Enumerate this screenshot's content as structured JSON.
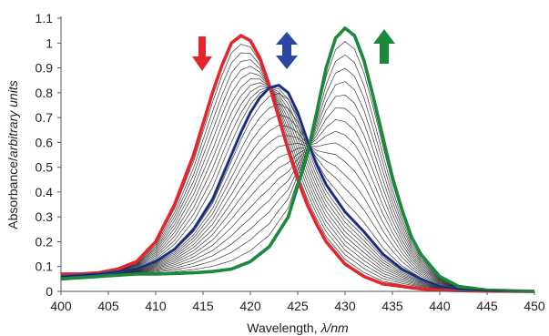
{
  "chart_data": {
    "type": "line",
    "xlabel_parts": [
      "Wavelength, ",
      "λ/nm"
    ],
    "ylabel_parts": [
      "Absorbance/",
      "arbitrary units"
    ],
    "xlim": [
      400,
      450
    ],
    "ylim": [
      0,
      1.1
    ],
    "x_ticks": [
      400,
      405,
      410,
      415,
      420,
      425,
      430,
      435,
      440,
      445,
      450
    ],
    "x_tick_labels": [
      "400",
      "405",
      "410",
      "415",
      "420",
      "425",
      "430",
      "435",
      "440",
      "445",
      "450"
    ],
    "y_ticks": [
      0,
      0.1,
      0.2,
      0.3,
      0.4,
      0.5,
      0.6,
      0.7,
      0.8,
      0.9,
      1.0,
      1.1
    ],
    "y_tick_labels": [
      "0",
      "0.1",
      "0.2",
      "0.3",
      "0.4",
      "0.5",
      "0.6",
      "0.7",
      "0.8",
      "0.9",
      "1",
      "1.1"
    ],
    "grid": false,
    "highlighted_series": [
      {
        "color": "#e3262b",
        "x": [
          400,
          402,
          404,
          406,
          408,
          410,
          412,
          414,
          416,
          417,
          418,
          419,
          420,
          421,
          422,
          423,
          424,
          425,
          426,
          427,
          428,
          430,
          432,
          434,
          436,
          438,
          440,
          442,
          445,
          450
        ],
        "values": [
          0.07,
          0.07,
          0.075,
          0.09,
          0.12,
          0.2,
          0.35,
          0.55,
          0.8,
          0.91,
          1.0,
          1.03,
          1.01,
          0.94,
          0.83,
          0.7,
          0.57,
          0.45,
          0.35,
          0.27,
          0.2,
          0.11,
          0.06,
          0.03,
          0.02,
          0.01,
          0.005,
          0.003,
          0.001,
          0
        ]
      },
      {
        "color": "#2b46a3",
        "x": [
          400,
          402,
          404,
          406,
          408,
          410,
          412,
          414,
          416,
          418,
          419,
          420,
          421,
          422,
          423,
          424,
          425,
          426,
          427,
          428,
          430,
          432,
          434,
          436,
          438,
          440,
          442,
          445,
          450
        ],
        "values": [
          0.06,
          0.065,
          0.07,
          0.08,
          0.09,
          0.12,
          0.17,
          0.25,
          0.37,
          0.55,
          0.64,
          0.72,
          0.78,
          0.82,
          0.83,
          0.8,
          0.72,
          0.61,
          0.51,
          0.43,
          0.32,
          0.24,
          0.15,
          0.09,
          0.05,
          0.02,
          0.01,
          0.003,
          0
        ]
      },
      {
        "color": "#1a8a3a",
        "x": [
          400,
          402,
          404,
          406,
          408,
          410,
          412,
          414,
          416,
          418,
          420,
          422,
          424,
          426,
          427,
          428,
          429,
          430,
          431,
          432,
          433,
          434,
          435,
          436,
          437,
          438,
          440,
          442,
          445,
          450
        ],
        "values": [
          0.05,
          0.055,
          0.06,
          0.065,
          0.07,
          0.07,
          0.072,
          0.075,
          0.08,
          0.09,
          0.12,
          0.18,
          0.3,
          0.55,
          0.72,
          0.9,
          1.02,
          1.06,
          1.03,
          0.93,
          0.78,
          0.62,
          0.46,
          0.33,
          0.22,
          0.15,
          0.06,
          0.02,
          0.005,
          0
        ]
      }
    ],
    "intermediate_series_count": 24,
    "arrows": [
      {
        "direction": "down",
        "color": "#e3262b"
      },
      {
        "direction": "up-down",
        "color": "#2b46a3"
      },
      {
        "direction": "up",
        "color": "#1a8a3a"
      }
    ]
  }
}
